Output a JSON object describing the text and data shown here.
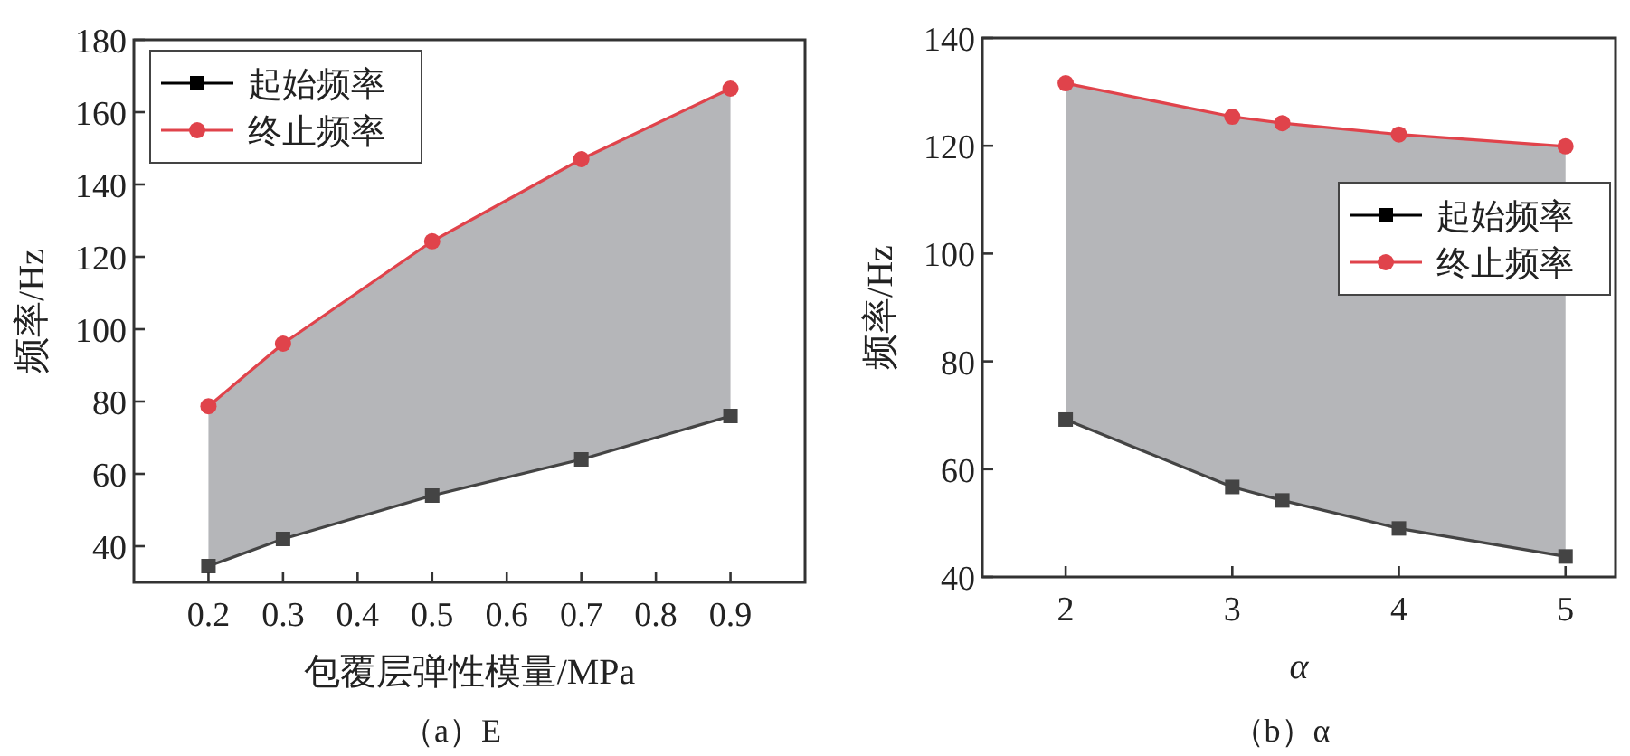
{
  "chart_data": [
    {
      "type": "line",
      "ylabel": "频率/Hz",
      "xlabel": "包覆层弹性模量/MPa",
      "annotations": [
        "（a）E"
      ],
      "x": [
        0.2,
        0.3,
        0.5,
        0.7,
        0.9
      ],
      "xlim": [
        0.1,
        1.0
      ],
      "xticks": [
        0.2,
        0.3,
        0.4,
        0.5,
        0.6,
        0.7,
        0.8,
        0.9
      ],
      "ylim": [
        30,
        180
      ],
      "yticks": [
        40,
        60,
        80,
        100,
        120,
        140,
        160,
        180
      ],
      "legend": "top left",
      "grid": false,
      "series": [
        {
          "name": "起始频率",
          "color": "#444444",
          "marker": "square",
          "values": [
            34.5,
            42,
            54,
            64,
            76
          ]
        },
        {
          "name": "终止频率",
          "color": "#e0434b",
          "marker": "circle",
          "values": [
            78.7,
            96,
            124.3,
            147,
            166.5
          ],
          "lower": [
            34.5,
            42,
            54,
            64,
            76
          ],
          "upper": [
            78.7,
            96,
            124.3,
            147,
            166.5
          ]
        }
      ]
    },
    {
      "type": "line",
      "ylabel": "频率/Hz",
      "xlabel": "α",
      "annotations": [
        "（b）α"
      ],
      "x": [
        2,
        3,
        3.3,
        4,
        5
      ],
      "xlim": [
        1.5,
        5.3
      ],
      "xticks": [
        2,
        3,
        4,
        5
      ],
      "ylim": [
        40,
        140
      ],
      "yticks": [
        40,
        60,
        80,
        100,
        120,
        140
      ],
      "legend": "right",
      "grid": false,
      "series": [
        {
          "name": "起始频率",
          "color": "#444444",
          "marker": "square",
          "values": [
            69.2,
            56.7,
            54.2,
            49.0,
            43.8
          ]
        },
        {
          "name": "终止频率",
          "color": "#e0434b",
          "marker": "circle",
          "values": [
            131.6,
            125.4,
            124.2,
            122.1,
            119.9
          ],
          "lower": [
            69.2,
            56.7,
            54.2,
            49.0,
            43.8
          ],
          "upper": [
            131.6,
            125.4,
            124.2,
            122.1,
            119.9
          ]
        }
      ]
    }
  ]
}
